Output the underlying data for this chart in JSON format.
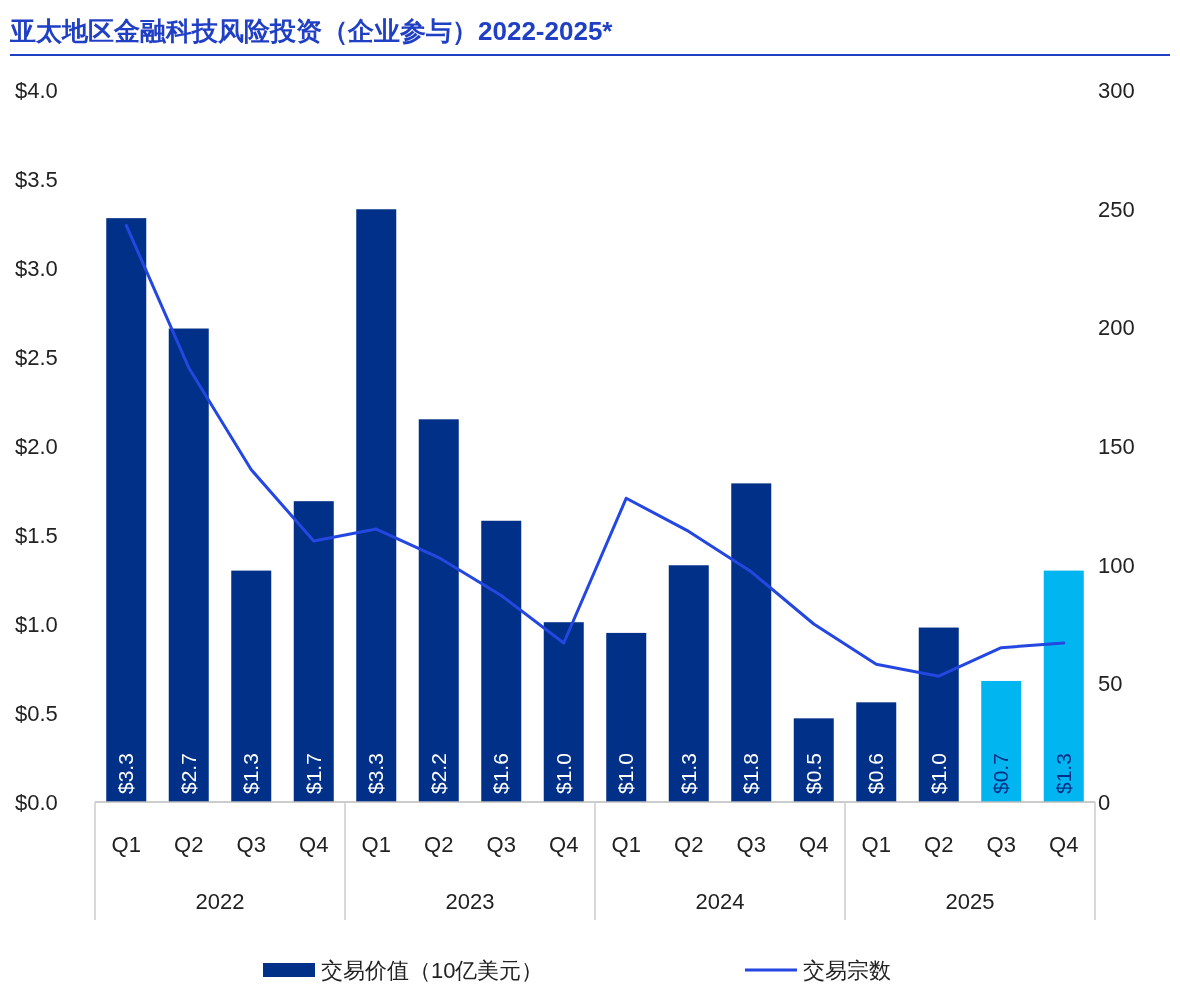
{
  "chart_data": {
    "type": "bar",
    "title": "亚太地区金融科技风险投资（企业参与）2022-2025*",
    "categories": [
      "Q1",
      "Q2",
      "Q3",
      "Q4",
      "Q1",
      "Q2",
      "Q3",
      "Q4",
      "Q1",
      "Q2",
      "Q3",
      "Q4",
      "Q1",
      "Q2",
      "Q3",
      "Q4"
    ],
    "annotations": [
      "2022",
      "2023",
      "2024",
      "2025"
    ],
    "series": [
      {
        "name": "交易价值（10亿美元）",
        "color": "#003087",
        "colors": [
          "#003087",
          "#003087",
          "#003087",
          "#003087",
          "#003087",
          "#003087",
          "#003087",
          "#003087",
          "#003087",
          "#003087",
          "#003087",
          "#003087",
          "#003087",
          "#003087",
          "#00b5f0",
          "#00b5f0"
        ],
        "values": [
          3.28,
          2.66,
          1.3,
          1.69,
          3.33,
          2.15,
          1.58,
          1.01,
          0.95,
          1.33,
          1.79,
          0.47,
          0.56,
          0.98,
          0.68,
          1.3
        ],
        "value_labels": [
          "$3.3",
          "$2.7",
          "$1.3",
          "$1.7",
          "$3.3",
          "$2.2",
          "$1.6",
          "$1.0",
          "$1.0",
          "$1.3",
          "$1.8",
          "$0.5",
          "$0.6",
          "$1.0",
          "$0.7",
          "$1.3"
        ]
      },
      {
        "name": "交易宗数",
        "type": "line",
        "axis": "y2",
        "color": "#2347e0",
        "values": [
          243,
          183,
          140,
          110,
          115,
          103,
          87,
          67,
          128,
          114,
          97,
          75,
          58,
          53,
          65,
          67
        ]
      }
    ],
    "ylim": [
      0,
      4
    ],
    "yticks": [
      {
        "value": 0,
        "label": "$0.0"
      },
      {
        "value": 0.5,
        "label": "$0.5"
      },
      {
        "value": 1,
        "label": "$1.0"
      },
      {
        "value": 1.5,
        "label": "$1.5"
      },
      {
        "value": 2,
        "label": "$2.0"
      },
      {
        "value": 2.5,
        "label": "$2.5"
      },
      {
        "value": 3,
        "label": "$3.0"
      },
      {
        "value": 3.5,
        "label": "$3.5"
      },
      {
        "value": 4,
        "label": "$4.0"
      }
    ],
    "y2lim": [
      0,
      300
    ],
    "y2ticks": [
      0,
      50,
      100,
      150,
      200,
      250,
      300
    ],
    "grid": false,
    "legend": "bottom",
    "marker": "none",
    "line_style": "solid"
  }
}
